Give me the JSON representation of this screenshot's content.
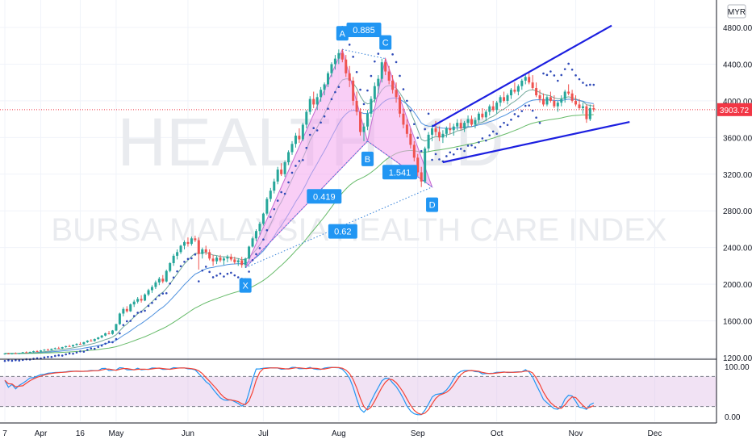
{
  "chart_data": {
    "type": "candlestick",
    "watermark_symbol": "HEALTH, 1D",
    "watermark_title": "BURSA MALAYSIA HEALTH CARE INDEX",
    "currency": "MYR",
    "last_price": "3903.72",
    "price_axis": {
      "ticks": [
        1200,
        1600,
        2000,
        2400,
        2800,
        3200,
        3600,
        4000,
        4400,
        4800
      ],
      "tick_labels": [
        "1200.00",
        "1600.00",
        "2000.00",
        "2400.00",
        "2800.00",
        "3200.00",
        "3600.00",
        "4000.00",
        "4400.00",
        "4800.00"
      ],
      "ylim": [
        1200,
        4950
      ]
    },
    "oscillator_axis": {
      "tick_labels": [
        "100.00",
        "0.00"
      ],
      "ylim": [
        0,
        100
      ],
      "levels": [
        80,
        20
      ]
    },
    "time_axis": {
      "labels": [
        "7",
        "Apr",
        "16",
        "May",
        "Jun",
        "Jul",
        "Aug",
        "Sep",
        "Oct",
        "Nov",
        "Dec"
      ],
      "index": [
        0,
        10,
        21,
        31,
        51,
        72,
        93,
        115,
        137,
        159,
        181
      ]
    },
    "harmonic_pattern": {
      "points": [
        {
          "label": "X",
          "index": 67,
          "price": 2180
        },
        {
          "label": "A",
          "index": 94,
          "price": 4560
        },
        {
          "label": "B",
          "index": 101,
          "price": 3560
        },
        {
          "label": "C",
          "index": 106,
          "price": 4460
        },
        {
          "label": "D",
          "index": 119,
          "price": 3060
        }
      ],
      "ratios": [
        "0.419",
        "0.885",
        "1.541",
        "0.62"
      ]
    },
    "channel": {
      "upper": {
        "from": {
          "index": 119,
          "price": 3720
        },
        "to": {
          "index": 169,
          "price": 4820
        }
      },
      "lower": {
        "from": {
          "index": 122,
          "price": 3330
        },
        "to": {
          "index": 174,
          "price": 3770
        }
      }
    },
    "candles": [
      [
        1240,
        1250,
        1232,
        1245
      ],
      [
        1245,
        1252,
        1238,
        1241
      ],
      [
        1241,
        1250,
        1234,
        1247
      ],
      [
        1247,
        1256,
        1240,
        1243
      ],
      [
        1243,
        1252,
        1237,
        1248
      ],
      [
        1248,
        1262,
        1244,
        1258
      ],
      [
        1258,
        1268,
        1250,
        1254
      ],
      [
        1254,
        1266,
        1249,
        1262
      ],
      [
        1262,
        1275,
        1256,
        1270
      ],
      [
        1270,
        1280,
        1262,
        1266
      ],
      [
        1266,
        1282,
        1260,
        1278
      ],
      [
        1278,
        1292,
        1272,
        1286
      ],
      [
        1286,
        1298,
        1278,
        1283
      ],
      [
        1283,
        1300,
        1278,
        1296
      ],
      [
        1296,
        1310,
        1290,
        1304
      ],
      [
        1304,
        1318,
        1296,
        1300
      ],
      [
        1300,
        1318,
        1294,
        1314
      ],
      [
        1314,
        1330,
        1308,
        1325
      ],
      [
        1325,
        1340,
        1318,
        1322
      ],
      [
        1322,
        1342,
        1316,
        1338
      ],
      [
        1338,
        1356,
        1330,
        1350
      ],
      [
        1350,
        1368,
        1342,
        1346
      ],
      [
        1346,
        1372,
        1340,
        1368
      ],
      [
        1368,
        1390,
        1360,
        1385
      ],
      [
        1385,
        1402,
        1376,
        1380
      ],
      [
        1380,
        1408,
        1374,
        1402
      ],
      [
        1402,
        1425,
        1395,
        1420
      ],
      [
        1420,
        1446,
        1410,
        1440
      ],
      [
        1440,
        1472,
        1432,
        1465
      ],
      [
        1465,
        1490,
        1452,
        1458
      ],
      [
        1458,
        1500,
        1450,
        1495
      ],
      [
        1495,
        1570,
        1488,
        1565
      ],
      [
        1565,
        1690,
        1556,
        1680
      ],
      [
        1680,
        1750,
        1650,
        1730
      ],
      [
        1730,
        1760,
        1690,
        1705
      ],
      [
        1705,
        1790,
        1698,
        1780
      ],
      [
        1780,
        1830,
        1752,
        1810
      ],
      [
        1810,
        1860,
        1790,
        1840
      ],
      [
        1840,
        1880,
        1800,
        1822
      ],
      [
        1822,
        1900,
        1815,
        1888
      ],
      [
        1888,
        1950,
        1870,
        1935
      ],
      [
        1935,
        1990,
        1905,
        1970
      ],
      [
        1970,
        2040,
        1948,
        2020
      ],
      [
        2020,
        2080,
        1990,
        2060
      ],
      [
        2060,
        2100,
        2010,
        2030
      ],
      [
        2030,
        2160,
        2020,
        2145
      ],
      [
        2145,
        2240,
        2130,
        2230
      ],
      [
        2230,
        2330,
        2200,
        2310
      ],
      [
        2310,
        2380,
        2270,
        2350
      ],
      [
        2350,
        2430,
        2330,
        2420
      ],
      [
        2420,
        2480,
        2380,
        2460
      ],
      [
        2460,
        2510,
        2410,
        2440
      ],
      [
        2440,
        2520,
        2420,
        2500
      ],
      [
        2500,
        2530,
        2460,
        2480
      ],
      [
        2480,
        2510,
        2160,
        2330
      ],
      [
        2330,
        2400,
        2280,
        2380
      ],
      [
        2380,
        2420,
        2320,
        2350
      ],
      [
        2350,
        2380,
        2260,
        2280
      ],
      [
        2280,
        2320,
        2200,
        2250
      ],
      [
        2250,
        2310,
        2220,
        2290
      ],
      [
        2290,
        2320,
        2240,
        2260
      ],
      [
        2260,
        2300,
        2210,
        2280
      ],
      [
        2280,
        2320,
        2240,
        2300
      ],
      [
        2300,
        2330,
        2250,
        2270
      ],
      [
        2270,
        2300,
        2220,
        2240
      ],
      [
        2240,
        2280,
        2200,
        2260
      ],
      [
        2260,
        2300,
        2180,
        2210
      ],
      [
        2210,
        2290,
        2180,
        2280
      ],
      [
        2280,
        2420,
        2270,
        2410
      ],
      [
        2410,
        2520,
        2400,
        2500
      ],
      [
        2500,
        2600,
        2470,
        2580
      ],
      [
        2580,
        2680,
        2540,
        2660
      ],
      [
        2660,
        2780,
        2640,
        2770
      ],
      [
        2770,
        2950,
        2750,
        2930
      ],
      [
        2930,
        3050,
        2900,
        3020
      ],
      [
        3020,
        3150,
        2990,
        3120
      ],
      [
        3120,
        3280,
        3090,
        3250
      ],
      [
        3250,
        3320,
        3180,
        3200
      ],
      [
        3200,
        3350,
        3170,
        3330
      ],
      [
        3330,
        3460,
        3300,
        3440
      ],
      [
        3440,
        3560,
        3410,
        3530
      ],
      [
        3530,
        3650,
        3490,
        3620
      ],
      [
        3620,
        3700,
        3540,
        3580
      ],
      [
        3580,
        3760,
        3560,
        3740
      ],
      [
        3740,
        3900,
        3700,
        3880
      ],
      [
        3880,
        4050,
        3850,
        4020
      ],
      [
        4020,
        4100,
        3920,
        3960
      ],
      [
        3960,
        4080,
        3900,
        4040
      ],
      [
        4040,
        4150,
        3990,
        4120
      ],
      [
        4120,
        4200,
        4060,
        4180
      ],
      [
        4180,
        4320,
        4150,
        4300
      ],
      [
        4300,
        4420,
        4260,
        4400
      ],
      [
        4400,
        4500,
        4340,
        4460
      ],
      [
        4460,
        4560,
        4400,
        4520
      ],
      [
        4520,
        4560,
        4420,
        4450
      ],
      [
        4450,
        4500,
        4260,
        4300
      ],
      [
        4300,
        4380,
        4150,
        4220
      ],
      [
        4220,
        4260,
        3950,
        4000
      ],
      [
        4000,
        4100,
        3840,
        3880
      ],
      [
        3880,
        3920,
        3620,
        3660
      ],
      [
        3660,
        3760,
        3560,
        3720
      ],
      [
        3720,
        3900,
        3680,
        3860
      ],
      [
        3860,
        4050,
        3820,
        4020
      ],
      [
        4020,
        4200,
        3980,
        4160
      ],
      [
        4160,
        4280,
        4080,
        4240
      ],
      [
        4240,
        4460,
        4200,
        4420
      ],
      [
        4420,
        4460,
        4280,
        4320
      ],
      [
        4320,
        4380,
        4180,
        4220
      ],
      [
        4220,
        4280,
        4080,
        4120
      ],
      [
        4120,
        4200,
        3980,
        4040
      ],
      [
        4040,
        4060,
        3820,
        3860
      ],
      [
        3860,
        3920,
        3700,
        3740
      ],
      [
        3740,
        3800,
        3600,
        3640
      ],
      [
        3640,
        3700,
        3480,
        3520
      ],
      [
        3520,
        3560,
        3340,
        3380
      ],
      [
        3380,
        3420,
        3180,
        3220
      ],
      [
        3220,
        3280,
        3060,
        3120
      ],
      [
        3120,
        3500,
        3100,
        3480
      ],
      [
        3480,
        3660,
        3440,
        3630
      ],
      [
        3630,
        3740,
        3560,
        3700
      ],
      [
        3700,
        3780,
        3620,
        3660
      ],
      [
        3660,
        3720,
        3560,
        3600
      ],
      [
        3600,
        3680,
        3540,
        3640
      ],
      [
        3640,
        3720,
        3600,
        3700
      ],
      [
        3700,
        3760,
        3640,
        3680
      ],
      [
        3680,
        3750,
        3620,
        3720
      ],
      [
        3720,
        3800,
        3680,
        3760
      ],
      [
        3760,
        3800,
        3680,
        3700
      ],
      [
        3700,
        3780,
        3660,
        3760
      ],
      [
        3760,
        3840,
        3720,
        3800
      ],
      [
        3800,
        3840,
        3720,
        3740
      ],
      [
        3740,
        3820,
        3700,
        3790
      ],
      [
        3790,
        3880,
        3760,
        3860
      ],
      [
        3860,
        3920,
        3800,
        3820
      ],
      [
        3820,
        3900,
        3780,
        3880
      ],
      [
        3880,
        3960,
        3840,
        3940
      ],
      [
        3940,
        4000,
        3880,
        3900
      ],
      [
        3900,
        4000,
        3860,
        3980
      ],
      [
        3980,
        4060,
        3940,
        4040
      ],
      [
        4040,
        4100,
        3980,
        4000
      ],
      [
        4000,
        4080,
        3960,
        4060
      ],
      [
        4060,
        4140,
        4020,
        4120
      ],
      [
        4120,
        4200,
        4080,
        4100
      ],
      [
        4100,
        4180,
        4060,
        4160
      ],
      [
        4160,
        4240,
        4120,
        4220
      ],
      [
        4220,
        4300,
        4180,
        4260
      ],
      [
        4260,
        4320,
        4180,
        4200
      ],
      [
        4200,
        4280,
        4120,
        4140
      ],
      [
        4140,
        4200,
        4040,
        4060
      ],
      [
        4060,
        4120,
        3980,
        4020
      ],
      [
        4020,
        4080,
        3940,
        3960
      ],
      [
        3960,
        4060,
        3940,
        4040
      ],
      [
        4040,
        4100,
        3980,
        4000
      ],
      [
        4000,
        4060,
        3920,
        3940
      ],
      [
        3940,
        4000,
        3880,
        3980
      ],
      [
        3980,
        4060,
        3940,
        4020
      ],
      [
        4020,
        4120,
        3980,
        4100
      ],
      [
        4100,
        4180,
        4060,
        4080
      ],
      [
        4080,
        4120,
        3980,
        4000
      ],
      [
        4000,
        4060,
        3940,
        3960
      ],
      [
        3960,
        4020,
        3900,
        3920
      ],
      [
        3920,
        3980,
        3860,
        3940
      ],
      [
        3940,
        3960,
        3760,
        3800
      ],
      [
        3800,
        3960,
        3780,
        3920
      ],
      [
        3920,
        3960,
        3880,
        3904
      ]
    ]
  }
}
